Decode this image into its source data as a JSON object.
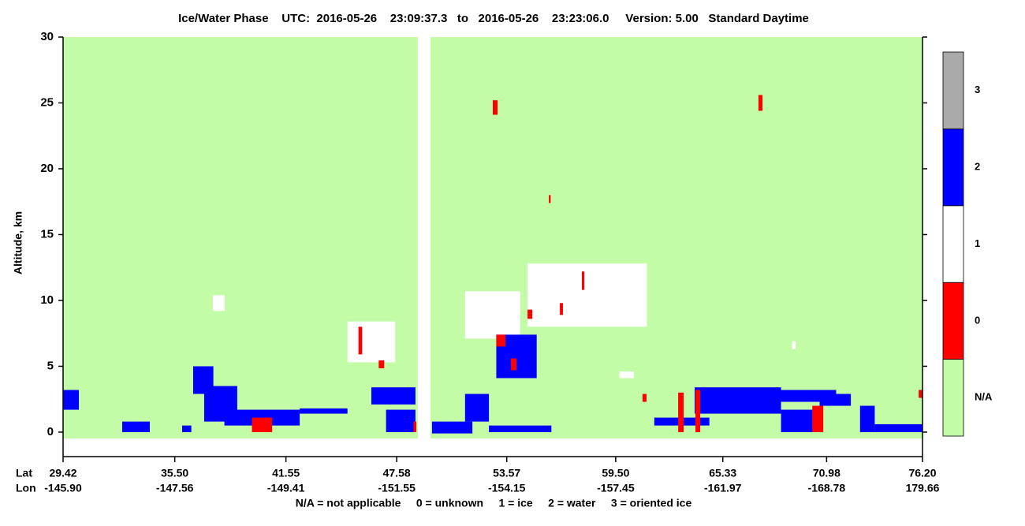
{
  "chart_data": {
    "type": "phase-curtain",
    "title": "Ice/Water Phase    UTC:  2016-05-26    23:09:37.3   to   2016-05-26    23:23:06.0     Version: 5.00   Standard Daytime",
    "ylabel": "Altitude, km",
    "x_row_label": "Lat",
    "x2_row_label": "Lon",
    "xlim": [
      29.42,
      76.2
    ],
    "xticks": [
      29.42,
      35.5,
      41.55,
      47.58,
      53.57,
      59.5,
      65.33,
      70.98,
      76.2
    ],
    "xtick_labels": [
      "29.42",
      "35.50",
      "41.55",
      "47.58",
      "53.57",
      "59.50",
      "65.33",
      "70.98",
      "76.20"
    ],
    "x2tick_labels": [
      "-145.90",
      "-147.56",
      "-149.41",
      "-151.55",
      "-154.15",
      "-157.45",
      "-161.97",
      "-168.78",
      "179.66"
    ],
    "ylim": [
      -1.86,
      30
    ],
    "yticks": [
      0,
      5,
      10,
      15,
      20,
      25,
      30
    ],
    "colorbar": [
      {
        "label": "N/A",
        "color": "#c2fca6"
      },
      {
        "label": "0",
        "color": "#ff0000"
      },
      {
        "label": "1",
        "color": "#ffffff"
      },
      {
        "label": "2",
        "color": "#0000ff"
      },
      {
        "label": "3",
        "color": "#aaaaaa"
      }
    ],
    "legend_note": "N/A = not applicable     0 = unknown     1 = ice     2 = water     3 = oriented ice",
    "background": {
      "y": [
        -0.48,
        30
      ],
      "segments": [
        [
          29.42,
          48.73
        ],
        [
          49.42,
          76.2
        ]
      ]
    },
    "regions": [
      {
        "x": [
          29.42,
          30.28
        ],
        "y": [
          1.7,
          3.2
        ],
        "phase": 2
      },
      {
        "x": [
          32.64,
          34.14
        ],
        "y": [
          0.0,
          0.8
        ],
        "phase": 2
      },
      {
        "x": [
          35.9,
          36.4
        ],
        "y": [
          0.0,
          0.5
        ],
        "phase": 2
      },
      {
        "x": [
          36.5,
          37.6
        ],
        "y": [
          2.9,
          5.0
        ],
        "phase": 2
      },
      {
        "x": [
          37.1,
          38.9
        ],
        "y": [
          0.8,
          3.5
        ],
        "phase": 2
      },
      {
        "x": [
          38.2,
          42.3
        ],
        "y": [
          0.5,
          1.7
        ],
        "phase": 2
      },
      {
        "x": [
          42.3,
          44.9
        ],
        "y": [
          1.4,
          1.8
        ],
        "phase": 2
      },
      {
        "x": [
          46.2,
          48.6
        ],
        "y": [
          2.1,
          3.4
        ],
        "phase": 2
      },
      {
        "x": [
          47.0,
          48.6
        ],
        "y": [
          0.0,
          1.7
        ],
        "phase": 2
      },
      {
        "x": [
          49.5,
          51.7
        ],
        "y": [
          -0.1,
          0.8
        ],
        "phase": 2
      },
      {
        "x": [
          51.3,
          52.6
        ],
        "y": [
          0.8,
          2.9
        ],
        "phase": 2
      },
      {
        "x": [
          52.6,
          56.0
        ],
        "y": [
          0.0,
          0.5
        ],
        "phase": 2
      },
      {
        "x": [
          61.6,
          64.6
        ],
        "y": [
          0.5,
          1.1
        ],
        "phase": 2
      },
      {
        "x": [
          63.8,
          68.5
        ],
        "y": [
          1.4,
          3.4
        ],
        "phase": 2
      },
      {
        "x": [
          67.2,
          71.5
        ],
        "y": [
          2.3,
          3.2
        ],
        "phase": 2
      },
      {
        "x": [
          68.5,
          70.6
        ],
        "y": [
          0.0,
          1.7
        ],
        "phase": 2
      },
      {
        "x": [
          70.6,
          72.3
        ],
        "y": [
          2.0,
          2.9
        ],
        "phase": 2
      },
      {
        "x": [
          72.8,
          73.6
        ],
        "y": [
          0.0,
          2.0
        ],
        "phase": 2
      },
      {
        "x": [
          73.6,
          76.2
        ],
        "y": [
          0.0,
          0.6
        ],
        "phase": 2
      },
      {
        "x": [
          37.57,
          38.22
        ],
        "y": [
          9.2,
          10.4
        ],
        "phase": 1
      },
      {
        "x": [
          44.9,
          47.5
        ],
        "y": [
          5.3,
          8.4
        ],
        "phase": 1
      },
      {
        "x": [
          51.3,
          54.3
        ],
        "y": [
          7.1,
          10.7
        ],
        "phase": 1
      },
      {
        "x": [
          54.7,
          61.2
        ],
        "y": [
          8.0,
          12.8
        ],
        "phase": 1
      },
      {
        "x": [
          59.7,
          60.5
        ],
        "y": [
          4.1,
          4.6
        ],
        "phase": 1
      },
      {
        "x": [
          69.1,
          69.3
        ],
        "y": [
          6.3,
          6.9
        ],
        "phase": 1
      },
      {
        "x": [
          53.0,
          55.2
        ],
        "y": [
          4.1,
          7.4
        ],
        "phase": 2
      },
      {
        "x": [
          52.81,
          53.07
        ],
        "y": [
          24.1,
          25.2
        ],
        "phase": 0
      },
      {
        "x": [
          67.27,
          67.49
        ],
        "y": [
          24.4,
          25.6
        ],
        "phase": 0
      },
      {
        "x": [
          55.86,
          55.96
        ],
        "y": [
          17.4,
          18.0
        ],
        "phase": 0
      },
      {
        "x": [
          57.66,
          57.79
        ],
        "y": [
          10.8,
          12.2
        ],
        "phase": 0
      },
      {
        "x": [
          62.9,
          63.2
        ],
        "y": [
          0.0,
          3.0
        ],
        "phase": 0
      },
      {
        "x": [
          63.84,
          64.1
        ],
        "y": [
          0.0,
          3.2
        ],
        "phase": 0
      },
      {
        "x": [
          39.7,
          40.8
        ],
        "y": [
          0.0,
          1.1
        ],
        "phase": 0
      },
      {
        "x": [
          46.6,
          46.9
        ],
        "y": [
          4.85,
          5.45
        ],
        "phase": 0
      },
      {
        "x": [
          48.5,
          48.65
        ],
        "y": [
          0.0,
          0.8
        ],
        "phase": 0
      },
      {
        "x": [
          70.2,
          70.8
        ],
        "y": [
          0.0,
          2.0
        ],
        "phase": 0
      },
      {
        "x": [
          60.96,
          61.18
        ],
        "y": [
          2.3,
          2.9
        ],
        "phase": 0
      },
      {
        "x": [
          45.5,
          45.7
        ],
        "y": [
          5.9,
          8.0
        ],
        "phase": 0
      },
      {
        "x": [
          54.7,
          54.96
        ],
        "y": [
          8.6,
          9.3
        ],
        "phase": 0
      },
      {
        "x": [
          56.46,
          56.63
        ],
        "y": [
          8.9,
          9.8
        ],
        "phase": 0
      },
      {
        "x": [
          75.99,
          76.2
        ],
        "y": [
          2.6,
          3.2
        ],
        "phase": 0
      },
      {
        "x": [
          53.0,
          53.5
        ],
        "y": [
          6.5,
          7.4
        ],
        "phase": 0
      },
      {
        "x": [
          53.8,
          54.1
        ],
        "y": [
          4.7,
          5.6
        ],
        "phase": 0
      }
    ]
  }
}
